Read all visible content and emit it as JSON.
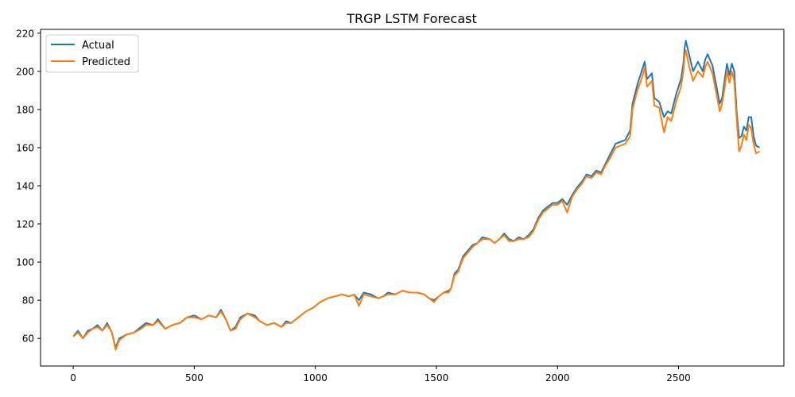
{
  "chart_data": {
    "type": "line",
    "title": "TRGP LSTM Forecast",
    "xlabel": "",
    "ylabel": "",
    "xlim": [
      -135,
      2935
    ],
    "ylim": [
      45.5,
      222
    ],
    "x_ticks": [
      0,
      500,
      1000,
      1500,
      2000,
      2500
    ],
    "y_ticks": [
      60,
      80,
      100,
      120,
      140,
      160,
      180,
      200,
      220
    ],
    "grid": false,
    "legend_position": "top-left",
    "series": [
      {
        "name": "Actual",
        "color": "#1f77b4",
        "points": [
          [
            0,
            61
          ],
          [
            20,
            64
          ],
          [
            40,
            60
          ],
          [
            60,
            64
          ],
          [
            80,
            65
          ],
          [
            100,
            67
          ],
          [
            120,
            64
          ],
          [
            140,
            68
          ],
          [
            160,
            63
          ],
          [
            175,
            55
          ],
          [
            190,
            60
          ],
          [
            220,
            62
          ],
          [
            250,
            63
          ],
          [
            280,
            66
          ],
          [
            300,
            68
          ],
          [
            330,
            67
          ],
          [
            350,
            70
          ],
          [
            380,
            65
          ],
          [
            410,
            67
          ],
          [
            440,
            68
          ],
          [
            470,
            71
          ],
          [
            500,
            72
          ],
          [
            530,
            70
          ],
          [
            560,
            72
          ],
          [
            590,
            71
          ],
          [
            610,
            75
          ],
          [
            630,
            70
          ],
          [
            650,
            64
          ],
          [
            670,
            66
          ],
          [
            690,
            71
          ],
          [
            720,
            73
          ],
          [
            750,
            72
          ],
          [
            770,
            69
          ],
          [
            800,
            67
          ],
          [
            830,
            68
          ],
          [
            860,
            66
          ],
          [
            880,
            69
          ],
          [
            900,
            68
          ],
          [
            930,
            71
          ],
          [
            960,
            74
          ],
          [
            990,
            76
          ],
          [
            1020,
            79
          ],
          [
            1050,
            81
          ],
          [
            1080,
            82
          ],
          [
            1110,
            83
          ],
          [
            1140,
            82
          ],
          [
            1160,
            83
          ],
          [
            1180,
            80
          ],
          [
            1200,
            84
          ],
          [
            1230,
            83
          ],
          [
            1260,
            81
          ],
          [
            1280,
            82
          ],
          [
            1300,
            84
          ],
          [
            1330,
            83
          ],
          [
            1360,
            85
          ],
          [
            1390,
            84
          ],
          [
            1420,
            84
          ],
          [
            1450,
            83
          ],
          [
            1470,
            81
          ],
          [
            1490,
            80
          ],
          [
            1510,
            82
          ],
          [
            1530,
            84
          ],
          [
            1550,
            85
          ],
          [
            1560,
            86
          ],
          [
            1575,
            94
          ],
          [
            1590,
            96
          ],
          [
            1610,
            103
          ],
          [
            1630,
            106
          ],
          [
            1650,
            109
          ],
          [
            1670,
            110
          ],
          [
            1690,
            113
          ],
          [
            1720,
            112
          ],
          [
            1740,
            110
          ],
          [
            1760,
            112
          ],
          [
            1780,
            115
          ],
          [
            1800,
            112
          ],
          [
            1820,
            111
          ],
          [
            1840,
            113
          ],
          [
            1860,
            112
          ],
          [
            1880,
            114
          ],
          [
            1900,
            117
          ],
          [
            1920,
            123
          ],
          [
            1940,
            127
          ],
          [
            1960,
            129
          ],
          [
            1980,
            131
          ],
          [
            2000,
            131
          ],
          [
            2020,
            133
          ],
          [
            2040,
            130
          ],
          [
            2060,
            135
          ],
          [
            2080,
            139
          ],
          [
            2100,
            142
          ],
          [
            2120,
            146
          ],
          [
            2140,
            145
          ],
          [
            2160,
            148
          ],
          [
            2180,
            147
          ],
          [
            2200,
            152
          ],
          [
            2220,
            157
          ],
          [
            2240,
            162
          ],
          [
            2260,
            163
          ],
          [
            2280,
            164
          ],
          [
            2300,
            169
          ],
          [
            2310,
            183
          ],
          [
            2330,
            193
          ],
          [
            2350,
            201
          ],
          [
            2360,
            205
          ],
          [
            2370,
            196
          ],
          [
            2390,
            199
          ],
          [
            2400,
            186
          ],
          [
            2420,
            184
          ],
          [
            2440,
            176
          ],
          [
            2455,
            179
          ],
          [
            2470,
            178
          ],
          [
            2490,
            188
          ],
          [
            2510,
            196
          ],
          [
            2520,
            204
          ],
          [
            2525,
            212
          ],
          [
            2530,
            216
          ],
          [
            2545,
            208
          ],
          [
            2560,
            200
          ],
          [
            2580,
            205
          ],
          [
            2600,
            200
          ],
          [
            2610,
            206
          ],
          [
            2620,
            209
          ],
          [
            2640,
            203
          ],
          [
            2660,
            190
          ],
          [
            2670,
            183
          ],
          [
            2680,
            186
          ],
          [
            2690,
            195
          ],
          [
            2700,
            204
          ],
          [
            2710,
            198
          ],
          [
            2720,
            204
          ],
          [
            2730,
            200
          ],
          [
            2740,
            179
          ],
          [
            2750,
            165
          ],
          [
            2760,
            166
          ],
          [
            2770,
            171
          ],
          [
            2780,
            169
          ],
          [
            2790,
            176
          ],
          [
            2800,
            176
          ],
          [
            2810,
            166
          ],
          [
            2820,
            161
          ],
          [
            2835,
            160
          ]
        ]
      },
      {
        "name": "Predicted",
        "color": "#ff7f0e",
        "points": [
          [
            0,
            61
          ],
          [
            20,
            63
          ],
          [
            40,
            60
          ],
          [
            60,
            63
          ],
          [
            80,
            65
          ],
          [
            100,
            66
          ],
          [
            120,
            64
          ],
          [
            140,
            67
          ],
          [
            160,
            63
          ],
          [
            175,
            54
          ],
          [
            190,
            59
          ],
          [
            220,
            62
          ],
          [
            250,
            63
          ],
          [
            280,
            65
          ],
          [
            300,
            67
          ],
          [
            330,
            67
          ],
          [
            350,
            69
          ],
          [
            380,
            65
          ],
          [
            410,
            67
          ],
          [
            440,
            68
          ],
          [
            470,
            71
          ],
          [
            500,
            71
          ],
          [
            530,
            70
          ],
          [
            560,
            72
          ],
          [
            590,
            71
          ],
          [
            610,
            74
          ],
          [
            630,
            70
          ],
          [
            650,
            64
          ],
          [
            670,
            65
          ],
          [
            690,
            70
          ],
          [
            720,
            73
          ],
          [
            750,
            71
          ],
          [
            770,
            69
          ],
          [
            800,
            67
          ],
          [
            830,
            68
          ],
          [
            860,
            66
          ],
          [
            880,
            68
          ],
          [
            900,
            68
          ],
          [
            930,
            71
          ],
          [
            960,
            74
          ],
          [
            990,
            76
          ],
          [
            1020,
            79
          ],
          [
            1050,
            81
          ],
          [
            1080,
            82
          ],
          [
            1110,
            83
          ],
          [
            1140,
            82
          ],
          [
            1160,
            83
          ],
          [
            1180,
            77
          ],
          [
            1200,
            83
          ],
          [
            1230,
            82
          ],
          [
            1260,
            81
          ],
          [
            1280,
            82
          ],
          [
            1300,
            83
          ],
          [
            1330,
            83
          ],
          [
            1360,
            85
          ],
          [
            1390,
            84
          ],
          [
            1420,
            84
          ],
          [
            1450,
            83
          ],
          [
            1470,
            81
          ],
          [
            1490,
            79
          ],
          [
            1510,
            82
          ],
          [
            1530,
            84
          ],
          [
            1550,
            84
          ],
          [
            1560,
            86
          ],
          [
            1575,
            93
          ],
          [
            1590,
            95
          ],
          [
            1610,
            102
          ],
          [
            1630,
            105
          ],
          [
            1650,
            108
          ],
          [
            1670,
            110
          ],
          [
            1690,
            112
          ],
          [
            1720,
            112
          ],
          [
            1740,
            110
          ],
          [
            1760,
            112
          ],
          [
            1780,
            114
          ],
          [
            1800,
            111
          ],
          [
            1820,
            111
          ],
          [
            1840,
            112
          ],
          [
            1860,
            112
          ],
          [
            1880,
            113
          ],
          [
            1900,
            116
          ],
          [
            1920,
            122
          ],
          [
            1940,
            126
          ],
          [
            1960,
            128
          ],
          [
            1980,
            130
          ],
          [
            2000,
            130
          ],
          [
            2020,
            132
          ],
          [
            2040,
            126
          ],
          [
            2060,
            134
          ],
          [
            2080,
            138
          ],
          [
            2100,
            141
          ],
          [
            2120,
            145
          ],
          [
            2140,
            144
          ],
          [
            2160,
            147
          ],
          [
            2180,
            146
          ],
          [
            2200,
            151
          ],
          [
            2220,
            155
          ],
          [
            2240,
            160
          ],
          [
            2260,
            161
          ],
          [
            2280,
            162
          ],
          [
            2300,
            166
          ],
          [
            2310,
            180
          ],
          [
            2330,
            190
          ],
          [
            2350,
            197
          ],
          [
            2360,
            202
          ],
          [
            2370,
            192
          ],
          [
            2390,
            195
          ],
          [
            2400,
            182
          ],
          [
            2420,
            181
          ],
          [
            2440,
            168
          ],
          [
            2455,
            176
          ],
          [
            2470,
            174
          ],
          [
            2490,
            184
          ],
          [
            2510,
            192
          ],
          [
            2520,
            200
          ],
          [
            2525,
            208
          ],
          [
            2530,
            211
          ],
          [
            2545,
            202
          ],
          [
            2560,
            195
          ],
          [
            2580,
            200
          ],
          [
            2600,
            197
          ],
          [
            2610,
            202
          ],
          [
            2620,
            205
          ],
          [
            2640,
            199
          ],
          [
            2660,
            186
          ],
          [
            2670,
            179
          ],
          [
            2680,
            183
          ],
          [
            2690,
            191
          ],
          [
            2700,
            200
          ],
          [
            2710,
            194
          ],
          [
            2720,
            200
          ],
          [
            2730,
            195
          ],
          [
            2740,
            175
          ],
          [
            2750,
            158
          ],
          [
            2760,
            161
          ],
          [
            2770,
            167
          ],
          [
            2780,
            164
          ],
          [
            2790,
            172
          ],
          [
            2800,
            170
          ],
          [
            2810,
            162
          ],
          [
            2820,
            157
          ],
          [
            2835,
            158
          ]
        ]
      }
    ]
  }
}
